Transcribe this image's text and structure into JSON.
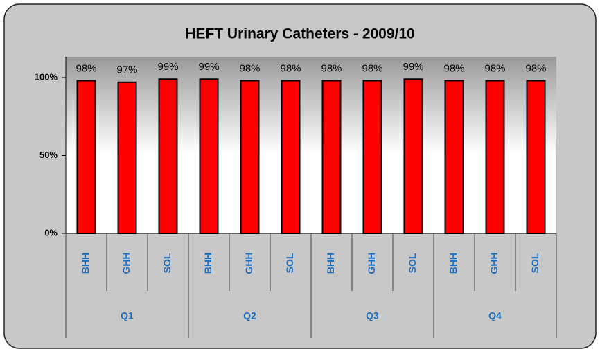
{
  "chart_data": {
    "type": "bar",
    "title": "HEFT Urinary Catheters  - 2009/10",
    "categories": [
      "BHH",
      "GHH",
      "SOL",
      "BHH",
      "GHH",
      "SOL",
      "BHH",
      "GHH",
      "SOL",
      "BHH",
      "GHH",
      "SOL"
    ],
    "groups": [
      "Q1",
      "Q2",
      "Q3",
      "Q4"
    ],
    "values": [
      98,
      97,
      99,
      99,
      98,
      98,
      98,
      98,
      99,
      98,
      98,
      98
    ],
    "value_labels": [
      "98%",
      "97%",
      "99%",
      "99%",
      "98%",
      "98%",
      "98%",
      "98%",
      "99%",
      "98%",
      "98%",
      "98%"
    ],
    "color": "#ff0000",
    "ylim": [
      0,
      100
    ],
    "yticks": [
      {
        "value": 0,
        "label": "0%"
      },
      {
        "value": 50,
        "label": "50%"
      },
      {
        "value": 100,
        "label": "100%"
      }
    ],
    "grid": false
  }
}
